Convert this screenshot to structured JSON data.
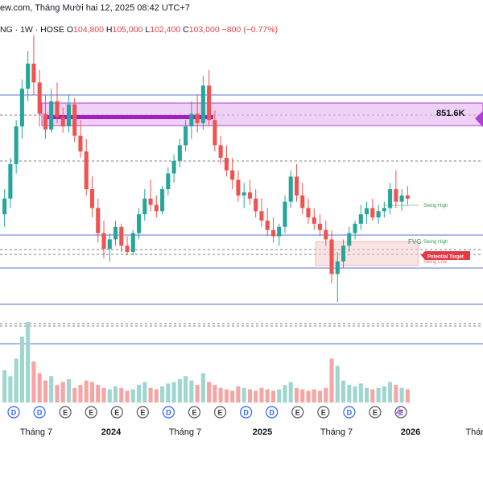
{
  "header": {
    "source_text": "ew.com, Tháng Mười hai 12, 2025 08:42 UTC+7"
  },
  "ohlc": {
    "symbol_text": "NG · 1W · HOSE",
    "o_label": "O",
    "o_value": "104,800",
    "h_label": "H",
    "h_value": "105,000",
    "l_label": "L",
    "l_value": "102,400",
    "c_label": "C",
    "c_value": "103,000",
    "change": "−800 (−0.77%)"
  },
  "colors": {
    "up": "#26a69a",
    "down": "#ef5350",
    "up_vol": "#9fd6cf",
    "down_vol": "#f5a5a3",
    "level_line": "#5b6fd9",
    "zone_fill": "#e6b3f0",
    "zone_border": "#b040d0",
    "target_red": "#e53946",
    "swing_green": "#2e9e4a"
  },
  "annotations": {
    "price_label": "851.6K",
    "swing_high_1": "Swing High",
    "swing_high_2": "Swing High",
    "swing_low": "Swing Low",
    "fvg": "FVG",
    "potential_target": "Potential Target"
  },
  "events": [
    "D",
    "D",
    "E",
    "E",
    "E",
    "E",
    "D",
    "E",
    "E",
    "D",
    "D",
    "E",
    "E",
    "D",
    "E",
    "E"
  ],
  "chart_data": {
    "type": "candlestick",
    "timeframe": "1W",
    "x_tick_labels": [
      "Tháng 7",
      "2024",
      "Tháng 7",
      "2025",
      "Tháng 7",
      "2026",
      "Tháng"
    ],
    "bold_ticks": [
      "2024",
      "2025",
      "2026"
    ],
    "y_range": [
      0,
      100
    ],
    "candles": [
      {
        "o": 42,
        "h": 50,
        "l": 38,
        "c": 47
      },
      {
        "o": 47,
        "h": 60,
        "l": 44,
        "c": 58
      },
      {
        "o": 58,
        "h": 72,
        "l": 55,
        "c": 70
      },
      {
        "o": 70,
        "h": 85,
        "l": 66,
        "c": 82
      },
      {
        "o": 82,
        "h": 94,
        "l": 78,
        "c": 90
      },
      {
        "o": 90,
        "h": 99,
        "l": 80,
        "c": 84
      },
      {
        "o": 84,
        "h": 88,
        "l": 70,
        "c": 74
      },
      {
        "o": 74,
        "h": 80,
        "l": 66,
        "c": 69
      },
      {
        "o": 69,
        "h": 82,
        "l": 68,
        "c": 78
      },
      {
        "o": 78,
        "h": 84,
        "l": 71,
        "c": 73
      },
      {
        "o": 73,
        "h": 76,
        "l": 68,
        "c": 70
      },
      {
        "o": 70,
        "h": 80,
        "l": 68,
        "c": 77
      },
      {
        "o": 77,
        "h": 79,
        "l": 65,
        "c": 67
      },
      {
        "o": 67,
        "h": 72,
        "l": 60,
        "c": 62
      },
      {
        "o": 62,
        "h": 66,
        "l": 48,
        "c": 50
      },
      {
        "o": 50,
        "h": 54,
        "l": 41,
        "c": 44
      },
      {
        "o": 44,
        "h": 47,
        "l": 33,
        "c": 36
      },
      {
        "o": 36,
        "h": 40,
        "l": 28,
        "c": 31
      },
      {
        "o": 31,
        "h": 36,
        "l": 27,
        "c": 34
      },
      {
        "o": 34,
        "h": 40,
        "l": 32,
        "c": 38
      },
      {
        "o": 38,
        "h": 39,
        "l": 30,
        "c": 32
      },
      {
        "o": 32,
        "h": 35,
        "l": 29,
        "c": 30
      },
      {
        "o": 30,
        "h": 37,
        "l": 29,
        "c": 36
      },
      {
        "o": 36,
        "h": 44,
        "l": 34,
        "c": 42
      },
      {
        "o": 42,
        "h": 50,
        "l": 40,
        "c": 47
      },
      {
        "o": 47,
        "h": 53,
        "l": 43,
        "c": 45
      },
      {
        "o": 45,
        "h": 48,
        "l": 41,
        "c": 43
      },
      {
        "o": 43,
        "h": 51,
        "l": 42,
        "c": 50
      },
      {
        "o": 50,
        "h": 57,
        "l": 48,
        "c": 55
      },
      {
        "o": 55,
        "h": 61,
        "l": 52,
        "c": 59
      },
      {
        "o": 59,
        "h": 66,
        "l": 57,
        "c": 64
      },
      {
        "o": 64,
        "h": 72,
        "l": 62,
        "c": 70
      },
      {
        "o": 70,
        "h": 78,
        "l": 66,
        "c": 74
      },
      {
        "o": 74,
        "h": 80,
        "l": 68,
        "c": 71
      },
      {
        "o": 71,
        "h": 86,
        "l": 69,
        "c": 83
      },
      {
        "o": 83,
        "h": 88,
        "l": 70,
        "c": 72
      },
      {
        "o": 72,
        "h": 75,
        "l": 62,
        "c": 64
      },
      {
        "o": 64,
        "h": 67,
        "l": 58,
        "c": 60
      },
      {
        "o": 60,
        "h": 64,
        "l": 54,
        "c": 56
      },
      {
        "o": 56,
        "h": 60,
        "l": 50,
        "c": 53
      },
      {
        "o": 53,
        "h": 56,
        "l": 46,
        "c": 48
      },
      {
        "o": 48,
        "h": 52,
        "l": 44,
        "c": 49
      },
      {
        "o": 49,
        "h": 53,
        "l": 45,
        "c": 47
      },
      {
        "o": 47,
        "h": 50,
        "l": 41,
        "c": 43
      },
      {
        "o": 43,
        "h": 47,
        "l": 38,
        "c": 40
      },
      {
        "o": 40,
        "h": 44,
        "l": 35,
        "c": 37
      },
      {
        "o": 37,
        "h": 41,
        "l": 33,
        "c": 35
      },
      {
        "o": 35,
        "h": 39,
        "l": 32,
        "c": 38
      },
      {
        "o": 38,
        "h": 48,
        "l": 36,
        "c": 46
      },
      {
        "o": 46,
        "h": 56,
        "l": 44,
        "c": 54
      },
      {
        "o": 54,
        "h": 58,
        "l": 46,
        "c": 48
      },
      {
        "o": 48,
        "h": 52,
        "l": 42,
        "c": 44
      },
      {
        "o": 44,
        "h": 47,
        "l": 39,
        "c": 41
      },
      {
        "o": 41,
        "h": 44,
        "l": 37,
        "c": 39
      },
      {
        "o": 39,
        "h": 42,
        "l": 35,
        "c": 37
      },
      {
        "o": 37,
        "h": 40,
        "l": 32,
        "c": 34
      },
      {
        "o": 34,
        "h": 37,
        "l": 20,
        "c": 23
      },
      {
        "o": 23,
        "h": 30,
        "l": 14,
        "c": 27
      },
      {
        "o": 27,
        "h": 34,
        "l": 25,
        "c": 32
      },
      {
        "o": 32,
        "h": 38,
        "l": 30,
        "c": 36
      },
      {
        "o": 36,
        "h": 40,
        "l": 34,
        "c": 39
      },
      {
        "o": 39,
        "h": 45,
        "l": 37,
        "c": 42
      },
      {
        "o": 42,
        "h": 46,
        "l": 39,
        "c": 44
      },
      {
        "o": 44,
        "h": 47,
        "l": 40,
        "c": 41
      },
      {
        "o": 41,
        "h": 45,
        "l": 39,
        "c": 43
      },
      {
        "o": 43,
        "h": 46,
        "l": 41,
        "c": 44
      },
      {
        "o": 44,
        "h": 52,
        "l": 42,
        "c": 50
      },
      {
        "o": 50,
        "h": 56,
        "l": 44,
        "c": 46
      },
      {
        "o": 46,
        "h": 50,
        "l": 43,
        "c": 48
      },
      {
        "o": 48,
        "h": 51,
        "l": 45,
        "c": 47
      }
    ],
    "volume": [
      22,
      18,
      30,
      45,
      55,
      28,
      20,
      15,
      18,
      12,
      14,
      16,
      10,
      12,
      15,
      14,
      12,
      10,
      9,
      11,
      10,
      8,
      9,
      12,
      14,
      10,
      9,
      11,
      13,
      14,
      16,
      18,
      15,
      12,
      20,
      14,
      12,
      10,
      9,
      8,
      11,
      10,
      9,
      8,
      10,
      9,
      8,
      9,
      12,
      14,
      10,
      9,
      8,
      9,
      8,
      10,
      30,
      25,
      15,
      12,
      11,
      13,
      10,
      9,
      10,
      11,
      14,
      12,
      10,
      9
    ]
  }
}
